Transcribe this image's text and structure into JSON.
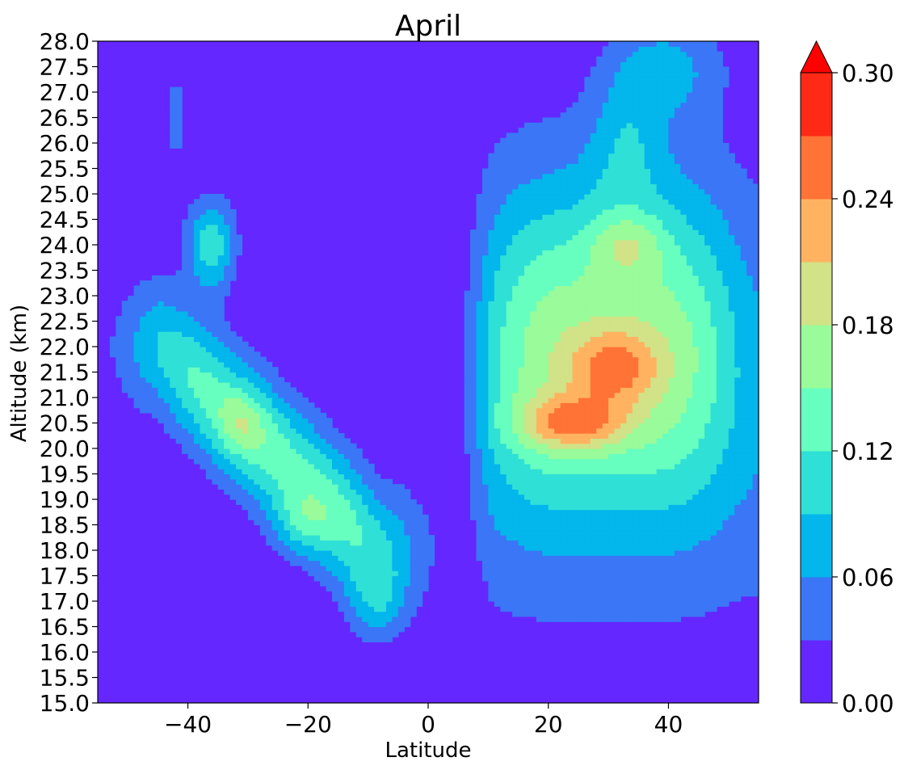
{
  "chart_data": {
    "type": "contourf",
    "title": "April",
    "xlabel": "Latitude",
    "ylabel": "Altitude (km)",
    "xlim": [
      -55,
      55
    ],
    "ylim": [
      15.0,
      28.0
    ],
    "xticks": [
      -40,
      -20,
      0,
      20,
      40
    ],
    "xtick_labels": [
      "−40",
      "−20",
      "0",
      "20",
      "40"
    ],
    "yticks": [
      15.0,
      15.5,
      16.0,
      16.5,
      17.0,
      17.5,
      18.0,
      18.5,
      19.0,
      19.5,
      20.0,
      20.5,
      21.0,
      21.5,
      22.0,
      22.5,
      23.0,
      23.5,
      24.0,
      24.5,
      25.0,
      25.5,
      26.0,
      26.5,
      27.0,
      27.5,
      28.0
    ],
    "ytick_labels": [
      "15.0",
      "15.5",
      "16.0",
      "16.5",
      "17.0",
      "17.5",
      "18.0",
      "18.5",
      "19.0",
      "19.5",
      "20.0",
      "20.5",
      "21.0",
      "21.5",
      "22.0",
      "22.5",
      "23.0",
      "23.5",
      "24.0",
      "24.5",
      "25.0",
      "25.5",
      "26.0",
      "26.5",
      "27.0",
      "27.5",
      "28.0"
    ],
    "levels": [
      0.0,
      0.03,
      0.06,
      0.09,
      0.12,
      0.15,
      0.18,
      0.21,
      0.24,
      0.27,
      0.3
    ],
    "colors": [
      "#6427ff",
      "#3b76f7",
      "#03b6ec",
      "#2fe0d6",
      "#66ffbf",
      "#99fb99",
      "#d1e287",
      "#ffb361",
      "#ff7337",
      "#ff2a16"
    ],
    "extend_color": "#ff0000",
    "colorbar": {
      "ticks": [
        0.0,
        0.06,
        0.12,
        0.18,
        0.24,
        0.3
      ],
      "tick_labels": [
        "0.00",
        "0.06",
        "0.12",
        "0.18",
        "0.24",
        "0.30"
      ],
      "extend": "max"
    }
  }
}
